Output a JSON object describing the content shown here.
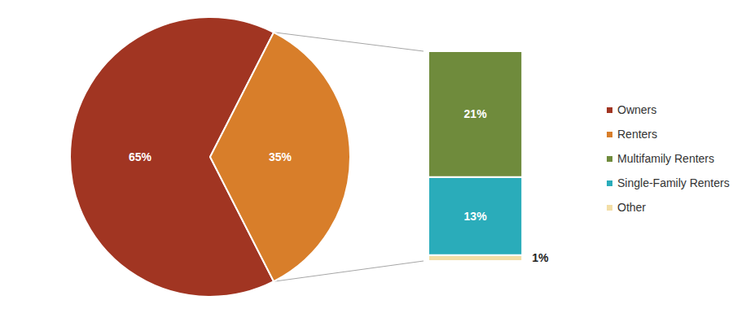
{
  "chart_data": {
    "type": "pie",
    "data_labels": true,
    "legend": "right",
    "categories": [
      "Owners",
      "Renters"
    ],
    "values": [
      65,
      35
    ],
    "value_labels": [
      "65%",
      "35%"
    ],
    "colors": [
      "#a13522",
      "#d87e2a"
    ],
    "breakdown": {
      "type": "bar",
      "stacked": true,
      "data_labels": true,
      "categories": [
        "Multifamily Renters",
        "Single-Family Renters",
        "Other"
      ],
      "values": [
        21,
        13,
        1
      ],
      "value_labels": [
        "21%",
        "13%",
        "1%"
      ],
      "colors": [
        "#6f8b3c",
        "#2aacba",
        "#f3dea6"
      ]
    }
  }
}
